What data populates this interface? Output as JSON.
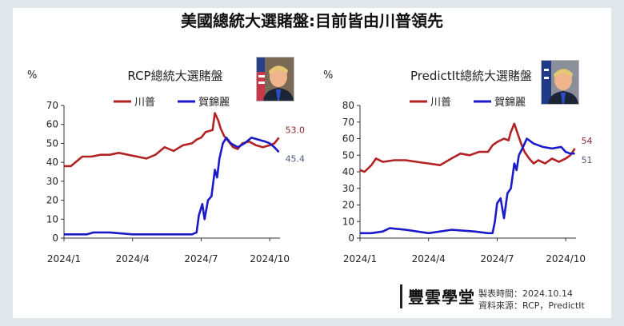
{
  "page": {
    "title": "美國總統大選賭盤:目前皆由川普領先"
  },
  "footer": {
    "brand": "豐雲學堂",
    "date_line": "製表時間：2024.10.14",
    "source_line": "資料來源：RCP，PredictIt"
  },
  "colors": {
    "trump": "#b22222",
    "harris": "#1a1ac8",
    "axis": "#333333"
  },
  "chart_data": [
    {
      "type": "line",
      "title": "RCP總統大選賭盤",
      "ylabel": "%",
      "ylim": [
        0,
        70
      ],
      "yticks": [
        0,
        10,
        20,
        30,
        40,
        50,
        60,
        70
      ],
      "xticks": [
        {
          "label": "2024/1",
          "x": 0
        },
        {
          "label": "2024/4",
          "x": 3
        },
        {
          "label": "2024/7",
          "x": 6
        },
        {
          "label": "2024/10",
          "x": 9
        }
      ],
      "xlim": [
        0,
        9.45
      ],
      "end_labels": {
        "trump": "53.0",
        "harris": "45.4"
      },
      "series": [
        {
          "name": "川普",
          "key": "trump",
          "points": [
            [
              0,
              38
            ],
            [
              0.3,
              38
            ],
            [
              0.5,
              40
            ],
            [
              0.8,
              43
            ],
            [
              1.2,
              43
            ],
            [
              1.6,
              44
            ],
            [
              2,
              44
            ],
            [
              2.4,
              45
            ],
            [
              2.8,
              44
            ],
            [
              3.2,
              43
            ],
            [
              3.6,
              42
            ],
            [
              4,
              44
            ],
            [
              4.4,
              48
            ],
            [
              4.8,
              46
            ],
            [
              5.2,
              49
            ],
            [
              5.6,
              50
            ],
            [
              5.8,
              52
            ],
            [
              6.0,
              53
            ],
            [
              6.2,
              56
            ],
            [
              6.5,
              57
            ],
            [
              6.6,
              66
            ],
            [
              6.75,
              62
            ],
            [
              6.85,
              58
            ],
            [
              7.0,
              54
            ],
            [
              7.2,
              51
            ],
            [
              7.4,
              48
            ],
            [
              7.6,
              47
            ],
            [
              7.8,
              50
            ],
            [
              8.1,
              51
            ],
            [
              8.4,
              49
            ],
            [
              8.7,
              48
            ],
            [
              9.0,
              49
            ],
            [
              9.2,
              50
            ],
            [
              9.4,
              53
            ]
          ]
        },
        {
          "name": "賀錦麗",
          "key": "harris",
          "points": [
            [
              0,
              2
            ],
            [
              1,
              2
            ],
            [
              1.3,
              3
            ],
            [
              2,
              3
            ],
            [
              3,
              2
            ],
            [
              4,
              2
            ],
            [
              5,
              2
            ],
            [
              5.6,
              2
            ],
            [
              5.8,
              3
            ],
            [
              5.9,
              12
            ],
            [
              6.05,
              18
            ],
            [
              6.15,
              10
            ],
            [
              6.3,
              20
            ],
            [
              6.45,
              22
            ],
            [
              6.6,
              36
            ],
            [
              6.7,
              32
            ],
            [
              6.8,
              42
            ],
            [
              6.95,
              50
            ],
            [
              7.1,
              53
            ],
            [
              7.3,
              50
            ],
            [
              7.6,
              48
            ],
            [
              7.9,
              50
            ],
            [
              8.2,
              53
            ],
            [
              8.5,
              52
            ],
            [
              8.8,
              51
            ],
            [
              9.0,
              50
            ],
            [
              9.2,
              48
            ],
            [
              9.4,
              45.4
            ]
          ]
        }
      ]
    },
    {
      "type": "line",
      "title": "PredictIt總統大選賭盤",
      "ylabel": "%",
      "ylim": [
        0,
        80
      ],
      "yticks": [
        0,
        10,
        20,
        30,
        40,
        50,
        60,
        70,
        80
      ],
      "xticks": [
        {
          "label": "2024/1",
          "x": 0
        },
        {
          "label": "2024/4",
          "x": 3
        },
        {
          "label": "2024/7",
          "x": 6
        },
        {
          "label": "2024/10",
          "x": 9
        }
      ],
      "xlim": [
        0,
        9.45
      ],
      "end_labels": {
        "trump": "54",
        "harris": "51"
      },
      "series": [
        {
          "name": "川普",
          "key": "trump",
          "points": [
            [
              0,
              41
            ],
            [
              0.2,
              40
            ],
            [
              0.5,
              44
            ],
            [
              0.7,
              48
            ],
            [
              1.0,
              46
            ],
            [
              1.5,
              47
            ],
            [
              2,
              47
            ],
            [
              2.5,
              46
            ],
            [
              3,
              45
            ],
            [
              3.5,
              44
            ],
            [
              4,
              48
            ],
            [
              4.4,
              51
            ],
            [
              4.8,
              50
            ],
            [
              5.2,
              52
            ],
            [
              5.6,
              52
            ],
            [
              5.8,
              56
            ],
            [
              6.0,
              58
            ],
            [
              6.3,
              60
            ],
            [
              6.5,
              59
            ],
            [
              6.6,
              64
            ],
            [
              6.75,
              69
            ],
            [
              6.9,
              63
            ],
            [
              7.05,
              57
            ],
            [
              7.2,
              52
            ],
            [
              7.4,
              48
            ],
            [
              7.6,
              45
            ],
            [
              7.8,
              47
            ],
            [
              8.1,
              45
            ],
            [
              8.4,
              48
            ],
            [
              8.7,
              46
            ],
            [
              9.0,
              48
            ],
            [
              9.2,
              50
            ],
            [
              9.4,
              54
            ]
          ]
        },
        {
          "name": "賀錦麗",
          "key": "harris",
          "points": [
            [
              0,
              3
            ],
            [
              0.5,
              3
            ],
            [
              1,
              4
            ],
            [
              1.3,
              6
            ],
            [
              2,
              5
            ],
            [
              3,
              3
            ],
            [
              4,
              5
            ],
            [
              5,
              4
            ],
            [
              5.6,
              3
            ],
            [
              5.8,
              3
            ],
            [
              5.9,
              10
            ],
            [
              6.0,
              21
            ],
            [
              6.15,
              24
            ],
            [
              6.3,
              12
            ],
            [
              6.45,
              27
            ],
            [
              6.6,
              30
            ],
            [
              6.75,
              45
            ],
            [
              6.85,
              41
            ],
            [
              6.95,
              50
            ],
            [
              7.1,
              54
            ],
            [
              7.3,
              60
            ],
            [
              7.6,
              57
            ],
            [
              8.0,
              55
            ],
            [
              8.4,
              54
            ],
            [
              8.8,
              55
            ],
            [
              9.0,
              52
            ],
            [
              9.2,
              51
            ],
            [
              9.4,
              51
            ]
          ]
        }
      ]
    }
  ]
}
